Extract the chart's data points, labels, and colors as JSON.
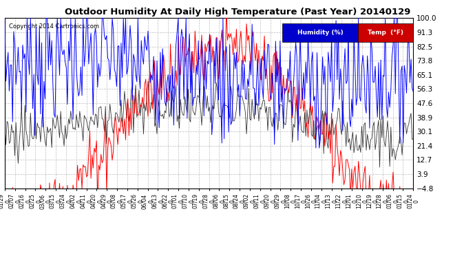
{
  "title": "Outdoor Humidity At Daily High Temperature (Past Year) 20140129",
  "copyright_text": "Copyright 2014 Cartronics.com",
  "legend_humidity_label": "Humidity (%)",
  "legend_temp_label": "Temp  (°F)",
  "legend_humidity_bg": "#0000cc",
  "legend_temp_bg": "#cc0000",
  "humidity_color": "#0000ff",
  "temp_color": "#ff0000",
  "dark_color": "#333333",
  "background_color": "#ffffff",
  "grid_color": "#bbbbbb",
  "ylim": [
    -4.8,
    100.0
  ],
  "yticks": [
    100.0,
    91.3,
    82.5,
    73.8,
    65.1,
    56.3,
    47.6,
    38.9,
    30.1,
    21.4,
    12.7,
    3.9,
    -4.8
  ],
  "xtick_labels": [
    "01/29",
    "02/07",
    "02/16",
    "02/25",
    "03/06",
    "03/15",
    "03/24",
    "04/02",
    "04/11",
    "04/20",
    "04/29",
    "05/08",
    "05/17",
    "05/26",
    "06/04",
    "06/13",
    "06/22",
    "07/01",
    "07/10",
    "07/19",
    "07/28",
    "08/06",
    "08/15",
    "08/24",
    "09/02",
    "09/11",
    "09/20",
    "09/29",
    "10/08",
    "10/17",
    "10/26",
    "11/04",
    "11/13",
    "11/22",
    "12/01",
    "12/10",
    "12/19",
    "12/28",
    "01/06",
    "01/15",
    "01/24"
  ],
  "n_days": 366
}
